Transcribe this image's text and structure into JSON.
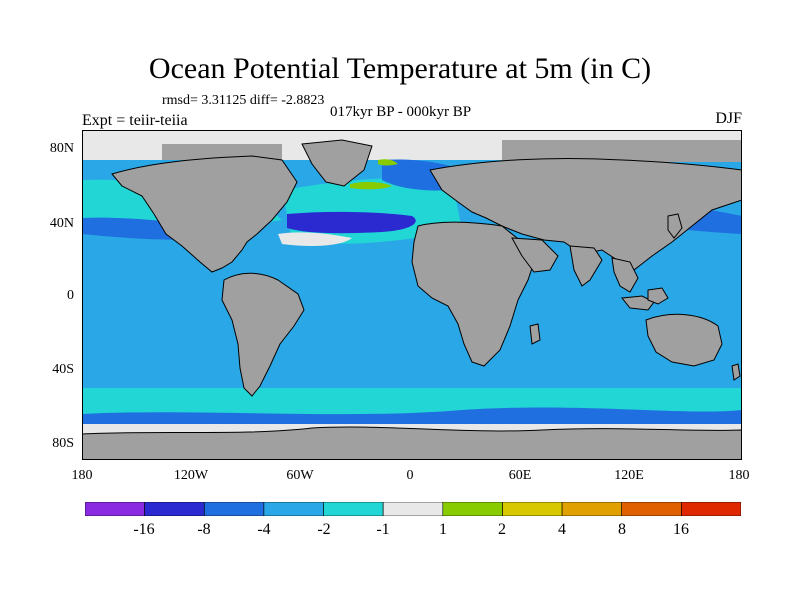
{
  "title": "Ocean Potential Temperature at 5m (in C)",
  "stats": "rmsd= 3.31125  diff= -2.8823",
  "experiment": "Expt = teiir-teiia",
  "period": "017kyr BP - 000kyr BP",
  "season": "DJF",
  "lat_labels": [
    "80N",
    "40N",
    "0",
    "40S",
    "80S"
  ],
  "lon_labels": [
    "180",
    "120W",
    "60W",
    "0",
    "60E",
    "120E",
    "180"
  ],
  "colorbar": {
    "labels": [
      "-16",
      "-8",
      "-4",
      "-2",
      "-1",
      "1",
      "2",
      "4",
      "8",
      "16"
    ],
    "colors": [
      "#8a2be2",
      "#2a2ad0",
      "#1f6fe0",
      "#2aa7e6",
      "#22d6d6",
      "#e8e8e8",
      "#88cc00",
      "#d8c800",
      "#e0a000",
      "#e06000",
      "#e02800"
    ]
  },
  "map_colors": {
    "land": "#a0a0a0",
    "sea_ice": "#e8e8e8",
    "ocean_main": "#2aa7e6",
    "ocean_cool": "#22d6d6",
    "ocean_cold": "#1f6fe0",
    "ocean_coldest": "#2a2ad0",
    "warm_anomaly": "#88cc00",
    "coast": "#000000"
  }
}
